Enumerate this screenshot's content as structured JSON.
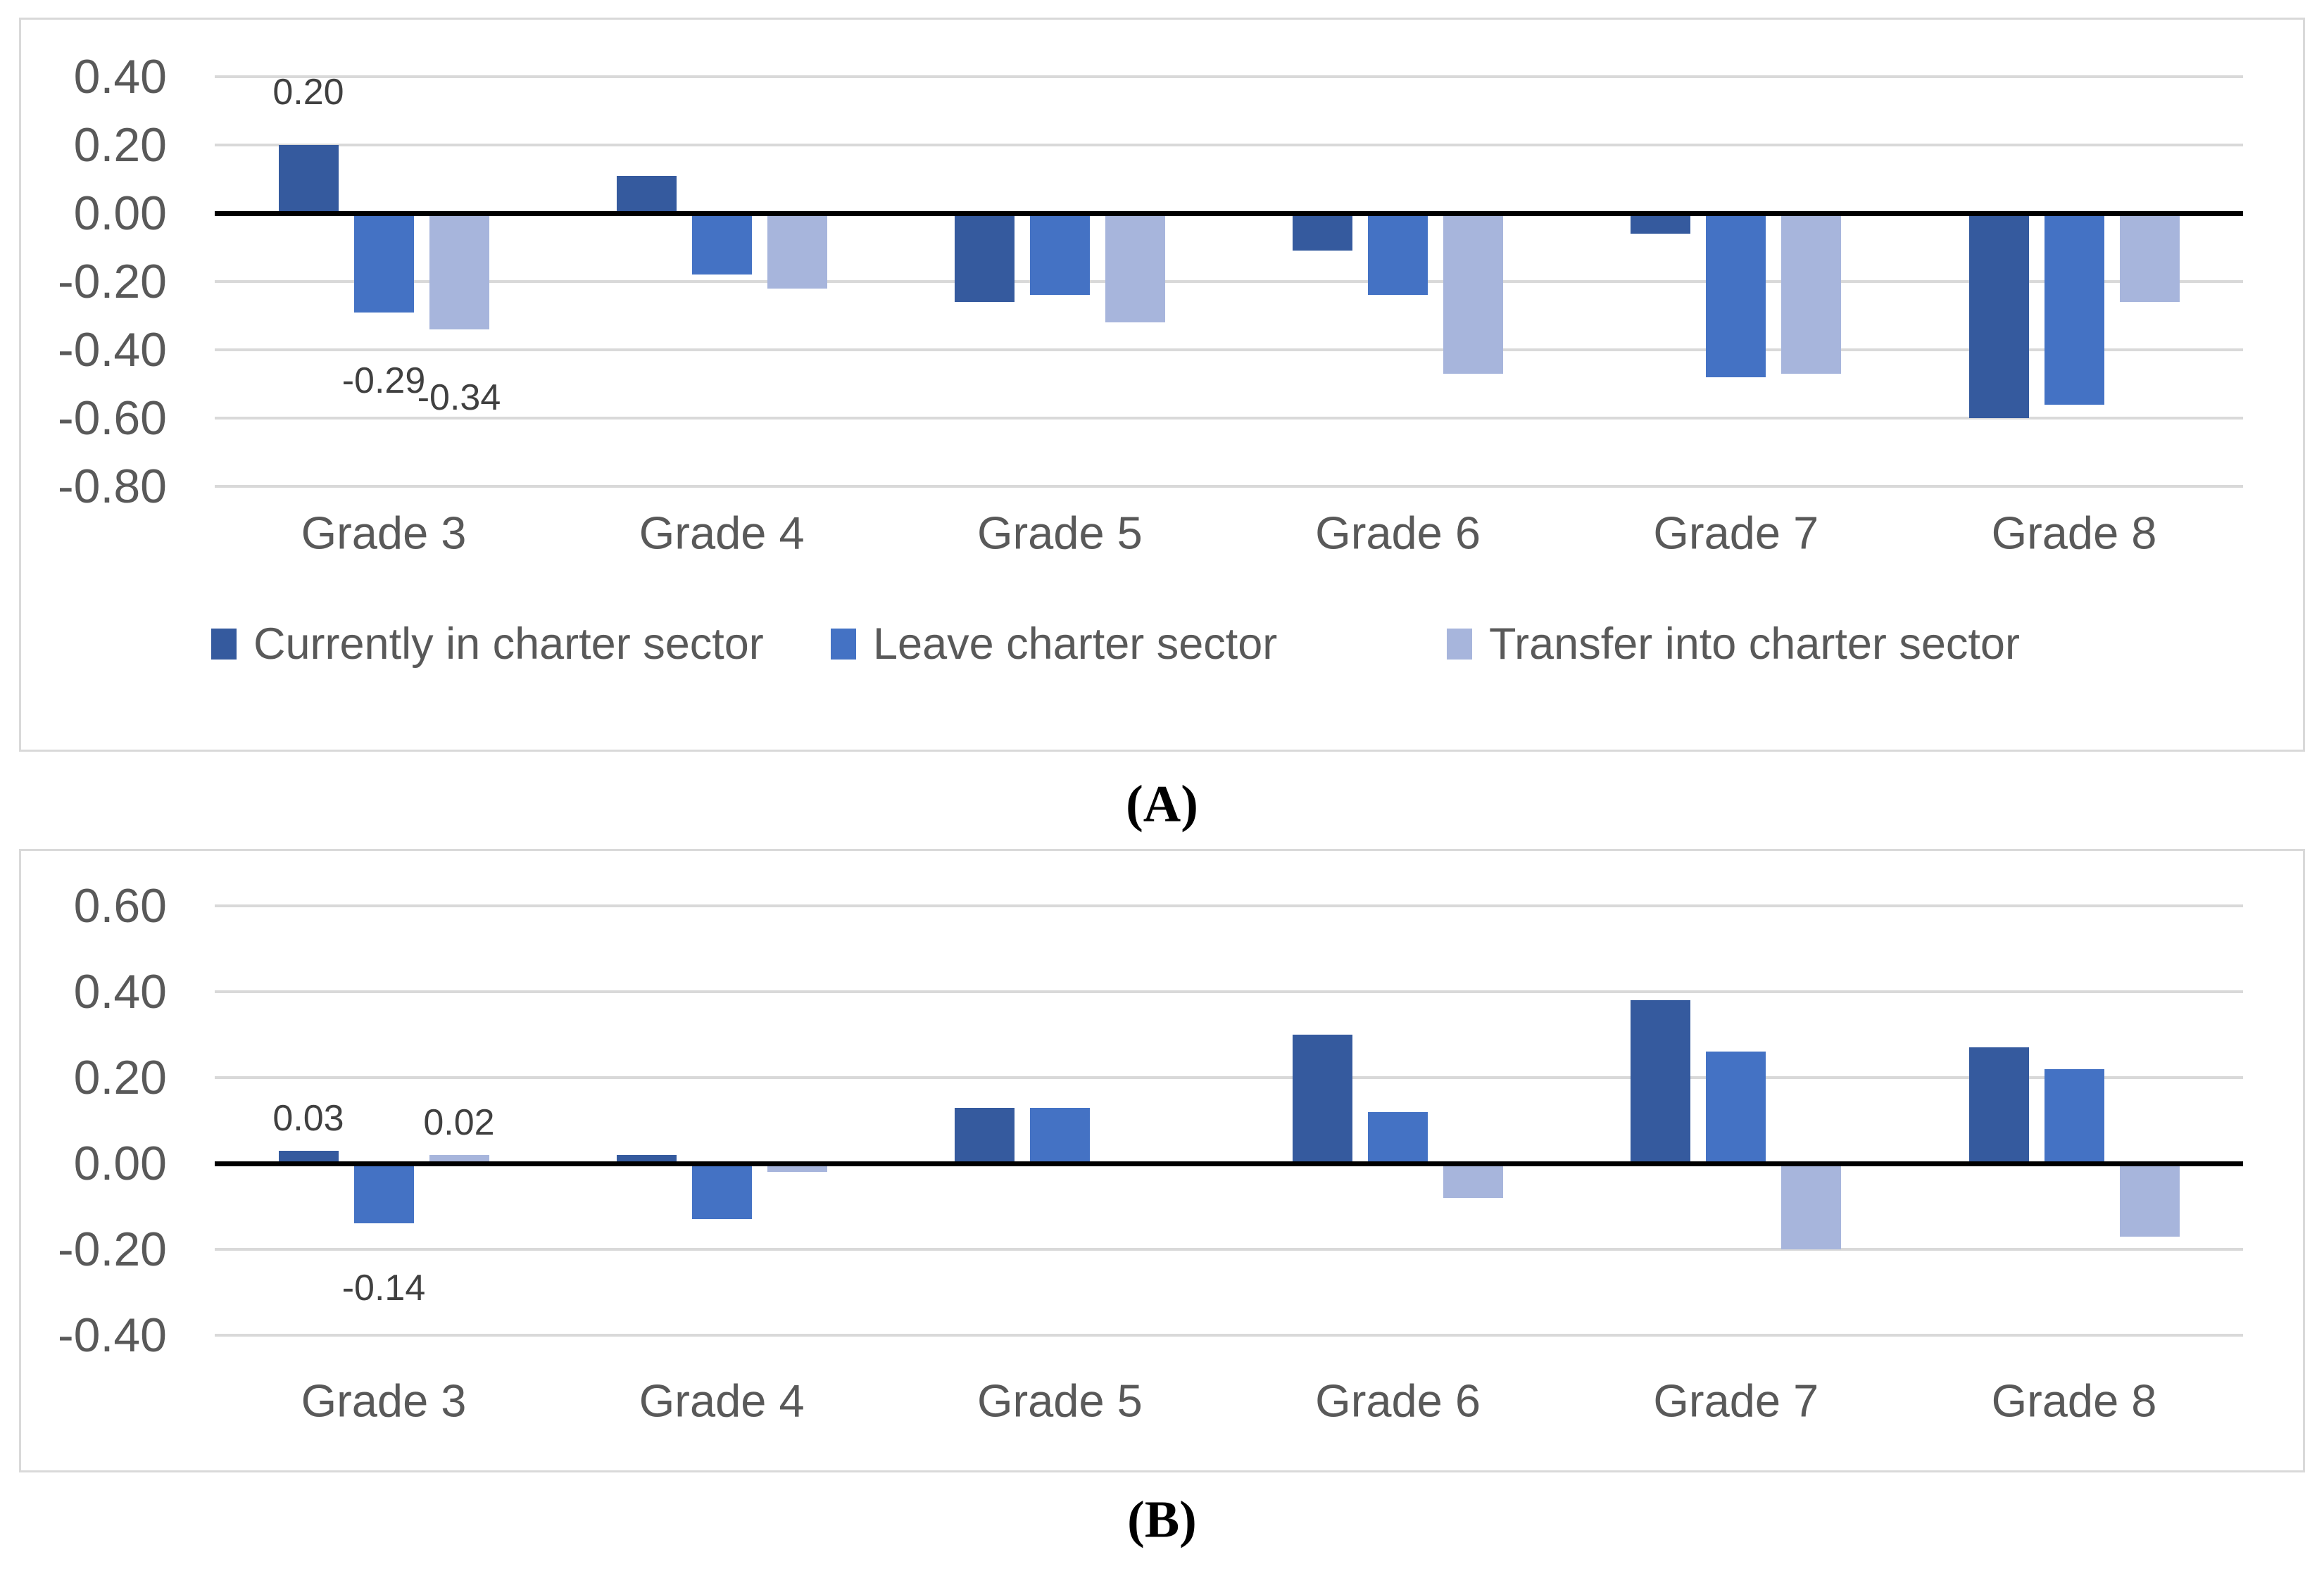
{
  "figure": {
    "caption_a": "(A)",
    "caption_b": "(B)"
  },
  "colors": {
    "series_dark_blue": "#355A9E",
    "series_medium_blue": "#4472C4",
    "series_light_blue": "#A7B5DC",
    "gridline": "#D9D9D9",
    "zero_axis": "#000000",
    "tick_text": "#595959",
    "data_label_text": "#404040",
    "panel_border": "#D9D9D9",
    "background": "#FFFFFF"
  },
  "legend": {
    "items": [
      {
        "label": "Currently in charter sector",
        "color": "#355A9E"
      },
      {
        "label": "Leave charter sector",
        "color": "#4472C4"
      },
      {
        "label": "Transfer into charter sector",
        "color": "#A7B5DC"
      }
    ]
  },
  "chart_data": [
    {
      "id": "A",
      "type": "bar",
      "title": "",
      "xlabel": "",
      "ylabel": "",
      "grid": true,
      "legend_position": "bottom",
      "ylim": [
        -0.9,
        0.5
      ],
      "y_ticks": [
        "0.40",
        "0.20",
        "0.00",
        "-0.20",
        "-0.40",
        "-0.60",
        "-0.80"
      ],
      "categories": [
        "Grade 3",
        "Grade 4",
        "Grade 5",
        "Grade 6",
        "Grade 7",
        "Grade 8"
      ],
      "series": [
        {
          "name": "Currently in charter sector",
          "color": "#355A9E",
          "values": [
            0.2,
            0.11,
            -0.26,
            -0.11,
            -0.06,
            -0.6
          ]
        },
        {
          "name": "Leave charter sector",
          "color": "#4472C4",
          "values": [
            -0.29,
            -0.18,
            -0.24,
            -0.24,
            -0.48,
            -0.56
          ]
        },
        {
          "name": "Transfer into charter sector",
          "color": "#A7B5DC",
          "values": [
            -0.34,
            -0.22,
            -0.32,
            -0.47,
            -0.47,
            -0.26
          ]
        }
      ],
      "data_labels": [
        {
          "series": 0,
          "category": 0,
          "text": "0.20"
        },
        {
          "series": 1,
          "category": 0,
          "text": "-0.29"
        },
        {
          "series": 2,
          "category": 0,
          "text": "-0.34"
        }
      ]
    },
    {
      "id": "B",
      "type": "bar",
      "title": "",
      "xlabel": "",
      "ylabel": "",
      "grid": true,
      "legend_position": "none",
      "ylim": [
        -0.5,
        0.7
      ],
      "y_ticks": [
        "0.60",
        "0.40",
        "0.20",
        "0.00",
        "-0.20",
        "-0.40"
      ],
      "categories": [
        "Grade 3",
        "Grade 4",
        "Grade 5",
        "Grade 6",
        "Grade 7",
        "Grade 8"
      ],
      "series": [
        {
          "name": "Currently in charter sector",
          "color": "#355A9E",
          "values": [
            0.03,
            0.02,
            0.13,
            0.3,
            0.38,
            0.27
          ]
        },
        {
          "name": "Leave charter sector",
          "color": "#4472C4",
          "values": [
            -0.14,
            -0.13,
            0.13,
            0.12,
            0.26,
            0.22
          ]
        },
        {
          "name": "Transfer into charter sector",
          "color": "#A7B5DC",
          "values": [
            0.02,
            -0.02,
            0.0,
            -0.08,
            -0.2,
            -0.17
          ]
        }
      ],
      "data_labels": [
        {
          "series": 0,
          "category": 0,
          "text": "0.03"
        },
        {
          "series": 1,
          "category": 0,
          "text": "-0.14"
        },
        {
          "series": 2,
          "category": 0,
          "text": "0.02"
        }
      ]
    }
  ]
}
